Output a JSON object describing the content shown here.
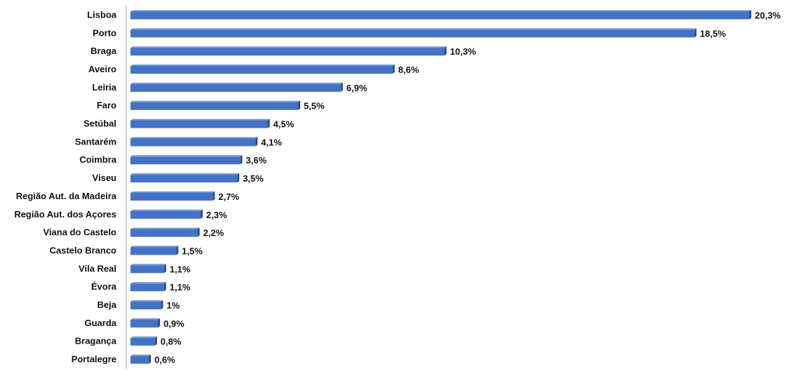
{
  "chart_data": {
    "type": "hbar",
    "categories": [
      "Lisboa",
      "Porto",
      "Braga",
      "Aveiro",
      "Leiria",
      "Faro",
      "Setúbal",
      "Santarém",
      "Coimbra",
      "Viseu",
      "Região Aut. da Madeira",
      "Região Aut. dos Açores",
      "Viana do Castelo",
      "Castelo Branco",
      "Vila Real",
      "Évora",
      "Beja",
      "Guarda",
      "Bragança",
      "Portalegre"
    ],
    "values": [
      20.3,
      18.5,
      10.3,
      8.6,
      6.9,
      5.5,
      4.5,
      4.1,
      3.6,
      3.5,
      2.7,
      2.3,
      2.2,
      1.5,
      1.1,
      1.1,
      1,
      0.9,
      0.8,
      0.6
    ],
    "value_labels": [
      "20,3%",
      "18,5%",
      "10,3%",
      "8,6%",
      "6,9%",
      "5,5%",
      "4,5%",
      "4,1%",
      "3,6%",
      "3,5%",
      "2,7%",
      "2,3%",
      "2,2%",
      "1,5%",
      "1,1%",
      "1,1%",
      "1%",
      "0,9%",
      "0,8%",
      "0,6%"
    ],
    "color": "#4472c4"
  }
}
